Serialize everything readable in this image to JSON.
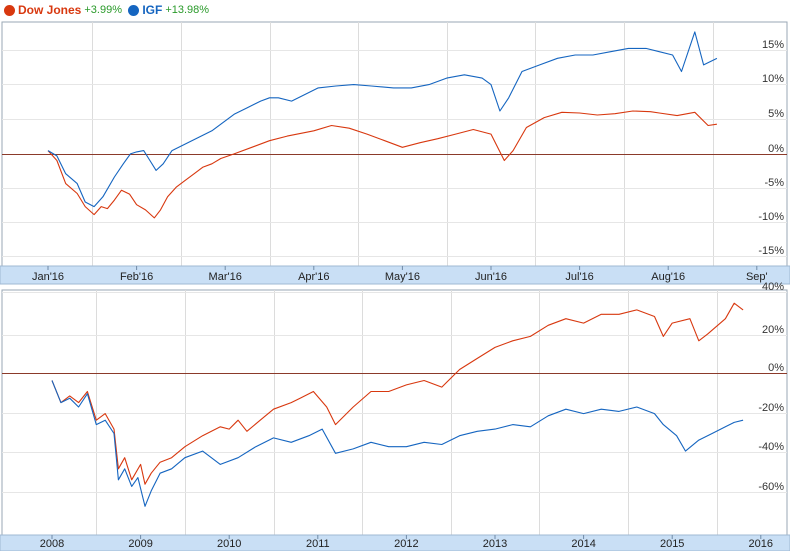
{
  "legend": {
    "items": [
      {
        "name": "Dow Jones",
        "change": "+3.99%",
        "color": "#d8380f"
      },
      {
        "name": "IGF",
        "change": "+13.98%",
        "color": "#1565c0"
      }
    ],
    "change_color": "#2a9a2a"
  },
  "chart_data": [
    {
      "type": "line",
      "x_ticks": [
        "Jan'16",
        "Feb'16",
        "Mar'16",
        "Apr'16",
        "May'16",
        "Jun'16",
        "Jul'16",
        "Aug'16",
        "Sep'"
      ],
      "y_ticks": [
        "15%",
        "10%",
        "5%",
        "0%",
        "-5%",
        "-10%",
        "-15%"
      ],
      "ylim": [
        -17.5,
        19.5
      ],
      "grid": true,
      "legend_position": "top-left",
      "series": [
        {
          "name": "Dow Jones",
          "color": "#d8380f",
          "points": [
            [
              0,
              0
            ],
            [
              0.1,
              -1.5
            ],
            [
              0.2,
              -5
            ],
            [
              0.33,
              -6.5
            ],
            [
              0.42,
              -8.5
            ],
            [
              0.52,
              -9.7
            ],
            [
              0.6,
              -8.5
            ],
            [
              0.67,
              -8.8
            ],
            [
              0.75,
              -7.5
            ],
            [
              0.83,
              -6
            ],
            [
              0.92,
              -6.6
            ],
            [
              1.0,
              -8.2
            ],
            [
              1.1,
              -9
            ],
            [
              1.2,
              -10.2
            ],
            [
              1.27,
              -9
            ],
            [
              1.35,
              -7
            ],
            [
              1.45,
              -5.5
            ],
            [
              1.55,
              -4.5
            ],
            [
              1.65,
              -3.5
            ],
            [
              1.75,
              -2.5
            ],
            [
              1.85,
              -2
            ],
            [
              1.95,
              -1.2
            ],
            [
              2.1,
              -0.5
            ],
            [
              2.3,
              0.5
            ],
            [
              2.5,
              1.5
            ],
            [
              2.7,
              2.2
            ],
            [
              3.0,
              3
            ],
            [
              3.2,
              3.8
            ],
            [
              3.4,
              3.4
            ],
            [
              3.6,
              2.5
            ],
            [
              3.8,
              1.5
            ],
            [
              4.0,
              0.5
            ],
            [
              4.2,
              1.2
            ],
            [
              4.4,
              1.8
            ],
            [
              4.6,
              2.5
            ],
            [
              4.8,
              3.2
            ],
            [
              5.0,
              2.5
            ],
            [
              5.15,
              -1.5
            ],
            [
              5.25,
              0
            ],
            [
              5.4,
              3.5
            ],
            [
              5.6,
              5
            ],
            [
              5.8,
              5.8
            ],
            [
              6.0,
              5.7
            ],
            [
              6.2,
              5.4
            ],
            [
              6.4,
              5.6
            ],
            [
              6.6,
              6
            ],
            [
              6.8,
              5.9
            ],
            [
              6.9,
              5.7
            ],
            [
              7.1,
              5.3
            ],
            [
              7.3,
              5.8
            ],
            [
              7.45,
              3.8
            ],
            [
              7.55,
              4
            ]
          ]
        },
        {
          "name": "IGF",
          "color": "#1565c0",
          "points": [
            [
              0,
              0
            ],
            [
              0.1,
              -0.8
            ],
            [
              0.2,
              -3.5
            ],
            [
              0.33,
              -5
            ],
            [
              0.42,
              -7.8
            ],
            [
              0.52,
              -8.5
            ],
            [
              0.62,
              -7
            ],
            [
              0.75,
              -4
            ],
            [
              0.85,
              -2
            ],
            [
              0.93,
              -0.5
            ],
            [
              1.0,
              -0.2
            ],
            [
              1.08,
              0
            ],
            [
              1.15,
              -1.5
            ],
            [
              1.22,
              -3
            ],
            [
              1.3,
              -2
            ],
            [
              1.4,
              0
            ],
            [
              1.55,
              1
            ],
            [
              1.7,
              2
            ],
            [
              1.85,
              3
            ],
            [
              1.95,
              4
            ],
            [
              2.1,
              5.5
            ],
            [
              2.25,
              6.5
            ],
            [
              2.4,
              7.5
            ],
            [
              2.5,
              8
            ],
            [
              2.6,
              8
            ],
            [
              2.75,
              7.5
            ],
            [
              2.9,
              8.5
            ],
            [
              3.05,
              9.5
            ],
            [
              3.25,
              9.8
            ],
            [
              3.45,
              10
            ],
            [
              3.65,
              9.8
            ],
            [
              3.9,
              9.5
            ],
            [
              4.1,
              9.5
            ],
            [
              4.3,
              10
            ],
            [
              4.5,
              11
            ],
            [
              4.7,
              11.5
            ],
            [
              4.9,
              11
            ],
            [
              5.0,
              10
            ],
            [
              5.1,
              6
            ],
            [
              5.2,
              8
            ],
            [
              5.35,
              12
            ],
            [
              5.55,
              13
            ],
            [
              5.75,
              14
            ],
            [
              5.95,
              14.5
            ],
            [
              6.15,
              14.5
            ],
            [
              6.35,
              15
            ],
            [
              6.55,
              15.5
            ],
            [
              6.75,
              15.5
            ],
            [
              6.9,
              15
            ],
            [
              7.05,
              14.5
            ],
            [
              7.15,
              12
            ],
            [
              7.3,
              18
            ],
            [
              7.4,
              13
            ],
            [
              7.55,
              13.98
            ]
          ]
        }
      ]
    },
    {
      "type": "line",
      "x_ticks": [
        "2008",
        "2009",
        "2010",
        "2011",
        "2012",
        "2013",
        "2014",
        "2015",
        "2016"
      ],
      "y_ticks": [
        "40%",
        "20%",
        "0%",
        "-20%",
        "-40%",
        "-60%"
      ],
      "ylim": [
        -70,
        41
      ],
      "grid": true,
      "series": [
        {
          "name": "Dow Jones",
          "color": "#d8380f",
          "points": [
            [
              0,
              0
            ],
            [
              0.1,
              -10
            ],
            [
              0.2,
              -7
            ],
            [
              0.3,
              -10
            ],
            [
              0.4,
              -5
            ],
            [
              0.5,
              -18
            ],
            [
              0.6,
              -15
            ],
            [
              0.7,
              -22
            ],
            [
              0.75,
              -40
            ],
            [
              0.82,
              -35
            ],
            [
              0.9,
              -45
            ],
            [
              1.0,
              -38
            ],
            [
              1.05,
              -47
            ],
            [
              1.12,
              -42
            ],
            [
              1.22,
              -37
            ],
            [
              1.35,
              -35
            ],
            [
              1.5,
              -30
            ],
            [
              1.7,
              -25
            ],
            [
              1.9,
              -21
            ],
            [
              2.0,
              -22
            ],
            [
              2.1,
              -18
            ],
            [
              2.2,
              -23
            ],
            [
              2.35,
              -18
            ],
            [
              2.5,
              -13
            ],
            [
              2.7,
              -10
            ],
            [
              2.8,
              -8
            ],
            [
              2.95,
              -5
            ],
            [
              3.1,
              -12
            ],
            [
              3.2,
              -20
            ],
            [
              3.4,
              -12
            ],
            [
              3.6,
              -5
            ],
            [
              3.8,
              -5
            ],
            [
              4.0,
              -2
            ],
            [
              4.2,
              0
            ],
            [
              4.4,
              -3
            ],
            [
              4.6,
              5
            ],
            [
              4.8,
              10
            ],
            [
              5.0,
              15
            ],
            [
              5.2,
              18
            ],
            [
              5.4,
              20
            ],
            [
              5.6,
              25
            ],
            [
              5.8,
              28
            ],
            [
              6.0,
              26
            ],
            [
              6.2,
              30
            ],
            [
              6.4,
              30
            ],
            [
              6.6,
              32
            ],
            [
              6.8,
              29
            ],
            [
              6.9,
              20
            ],
            [
              7.0,
              26
            ],
            [
              7.2,
              28
            ],
            [
              7.3,
              18
            ],
            [
              7.4,
              21
            ],
            [
              7.6,
              28
            ],
            [
              7.7,
              35
            ],
            [
              7.8,
              32
            ]
          ]
        },
        {
          "name": "IGF",
          "color": "#1565c0",
          "points": [
            [
              0,
              0
            ],
            [
              0.1,
              -10
            ],
            [
              0.2,
              -8
            ],
            [
              0.3,
              -12
            ],
            [
              0.4,
              -6
            ],
            [
              0.5,
              -20
            ],
            [
              0.6,
              -18
            ],
            [
              0.7,
              -24
            ],
            [
              0.75,
              -45
            ],
            [
              0.82,
              -40
            ],
            [
              0.9,
              -48
            ],
            [
              0.97,
              -44
            ],
            [
              1.05,
              -57
            ],
            [
              1.12,
              -50
            ],
            [
              1.22,
              -42
            ],
            [
              1.35,
              -40
            ],
            [
              1.5,
              -35
            ],
            [
              1.7,
              -32
            ],
            [
              1.9,
              -38
            ],
            [
              2.1,
              -35
            ],
            [
              2.3,
              -30
            ],
            [
              2.5,
              -26
            ],
            [
              2.7,
              -28
            ],
            [
              2.9,
              -25
            ],
            [
              3.05,
              -22
            ],
            [
              3.2,
              -33
            ],
            [
              3.4,
              -31
            ],
            [
              3.6,
              -28
            ],
            [
              3.8,
              -30
            ],
            [
              4.0,
              -30
            ],
            [
              4.2,
              -28
            ],
            [
              4.4,
              -29
            ],
            [
              4.6,
              -25
            ],
            [
              4.8,
              -23
            ],
            [
              5.0,
              -22
            ],
            [
              5.2,
              -20
            ],
            [
              5.4,
              -21
            ],
            [
              5.6,
              -16
            ],
            [
              5.8,
              -13
            ],
            [
              6.0,
              -15
            ],
            [
              6.2,
              -13
            ],
            [
              6.4,
              -14
            ],
            [
              6.6,
              -12
            ],
            [
              6.8,
              -15
            ],
            [
              6.9,
              -20
            ],
            [
              7.05,
              -25
            ],
            [
              7.15,
              -32
            ],
            [
              7.3,
              -27
            ],
            [
              7.45,
              -24
            ],
            [
              7.6,
              -21
            ],
            [
              7.7,
              -19
            ],
            [
              7.8,
              -18
            ]
          ]
        }
      ]
    }
  ]
}
